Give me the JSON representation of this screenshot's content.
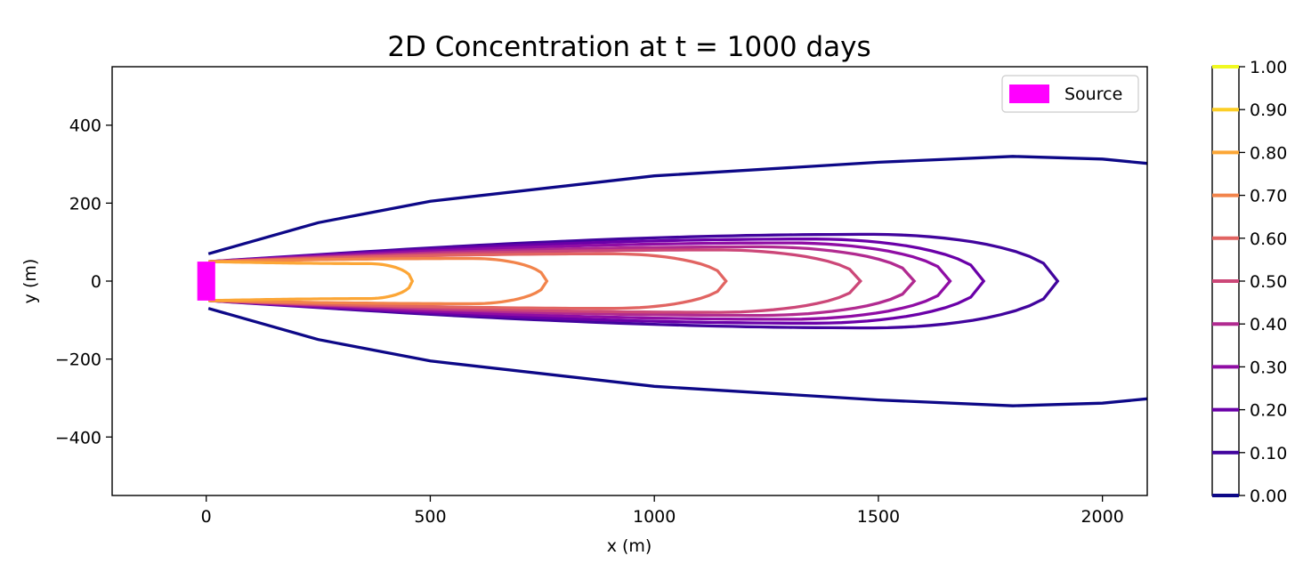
{
  "chart_data": {
    "type": "contour",
    "title": "2D Concentration at t = 1000 days",
    "xlabel": "x (m)",
    "ylabel": "y (m)",
    "xlim": [
      -210,
      2100
    ],
    "ylim": [
      -550,
      550
    ],
    "x_ticks": [
      0,
      500,
      1000,
      1500,
      2000
    ],
    "x_tick_labels": [
      "0",
      "500",
      "1000",
      "1500",
      "2000"
    ],
    "y_ticks": [
      400,
      200,
      0,
      -200,
      -400
    ],
    "y_tick_labels": [
      "400",
      "200",
      "0",
      "−200",
      "−400"
    ],
    "grid": false,
    "legend": {
      "position": "top-right",
      "entries": [
        {
          "label": "Source",
          "color": "#ff00ff"
        }
      ]
    },
    "source": {
      "x_range": [
        -20,
        20
      ],
      "y_range": [
        -50,
        50
      ],
      "color": "#ff00ff"
    },
    "colorbar": {
      "cmap": "plasma",
      "ticks": [
        0.0,
        0.1,
        0.2,
        0.3,
        0.4,
        0.5,
        0.6,
        0.7,
        0.8,
        0.9,
        1.0
      ],
      "tick_labels": [
        "0.00",
        "0.10",
        "0.20",
        "0.30",
        "0.40",
        "0.50",
        "0.60",
        "0.70",
        "0.80",
        "0.90",
        "1.00"
      ],
      "colors": [
        "#0d0887",
        "#41049d",
        "#6a00a8",
        "#8f0da4",
        "#b12a90",
        "#cc4778",
        "#e16462",
        "#f2844b",
        "#fca636",
        "#fcce25",
        "#f0f921"
      ]
    },
    "series": [
      {
        "level": 0.0,
        "color": "#0d0887",
        "width_at_source": 70,
        "max_half_width": 320,
        "peak_x": 1800,
        "points": [
          [
            5,
            70
          ],
          [
            250,
            150
          ],
          [
            500,
            205
          ],
          [
            1000,
            270
          ],
          [
            1500,
            305
          ],
          [
            1800,
            320
          ],
          [
            2000,
            313
          ],
          [
            2100,
            302
          ]
        ],
        "closed": false
      },
      {
        "level": 0.1,
        "color": "#41049d",
        "half_width": 50,
        "max_half_width": 120,
        "x_end": 1900
      },
      {
        "level": 0.2,
        "color": "#6a00a8",
        "half_width": 50,
        "max_half_width": 108,
        "x_end": 1735
      },
      {
        "level": 0.3,
        "color": "#8f0da4",
        "half_width": 50,
        "max_half_width": 98,
        "x_end": 1660
      },
      {
        "level": 0.4,
        "color": "#b12a90",
        "half_width": 50,
        "max_half_width": 88,
        "x_end": 1580
      },
      {
        "level": 0.5,
        "color": "#cc4778",
        "half_width": 50,
        "max_half_width": 80,
        "x_end": 1460
      },
      {
        "level": 0.6,
        "color": "#e16462",
        "half_width": 50,
        "max_half_width": 70,
        "x_end": 1160
      },
      {
        "level": 0.7,
        "color": "#f2844b",
        "half_width": 50,
        "max_half_width": 58,
        "x_end": 760
      },
      {
        "level": 0.8,
        "color": "#fca636",
        "half_width": 50,
        "max_half_width": 45,
        "x_end": 460
      }
    ]
  }
}
